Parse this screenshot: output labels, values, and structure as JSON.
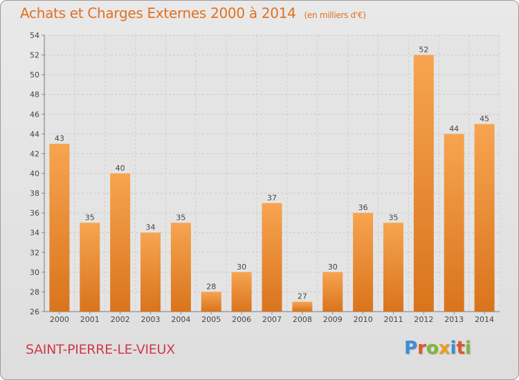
{
  "title": "Achats et Charges Externes 2000 à 2014",
  "unit": "(en milliers d'€)",
  "location": "SAINT-PIERRE-LE-VIEUX",
  "logo": {
    "text": "Proxiti",
    "letters": [
      {
        "ch": "P",
        "color": "#3a8fd6"
      },
      {
        "ch": "r",
        "color": "#e0582a"
      },
      {
        "ch": "o",
        "color": "#7cb83a"
      },
      {
        "ch": "x",
        "color": "#e8a020"
      },
      {
        "ch": "i",
        "color": "#3a8fd6"
      },
      {
        "ch": "t",
        "color": "#e0582a"
      },
      {
        "ch": "i",
        "color": "#7cb83a"
      }
    ]
  },
  "colors": {
    "bar_light": "#f7a450",
    "bar_dark": "#d9741c",
    "title": "#e07020",
    "location": "#cf3a4a"
  },
  "chart_data": {
    "type": "bar",
    "categories": [
      "2000",
      "2001",
      "2002",
      "2003",
      "2004",
      "2005",
      "2006",
      "2007",
      "2008",
      "2009",
      "2010",
      "2011",
      "2012",
      "2013",
      "2014"
    ],
    "values": [
      43,
      35,
      40,
      34,
      35,
      28,
      30,
      37,
      27,
      30,
      36,
      35,
      52,
      44,
      45
    ],
    "ylim": [
      26,
      54
    ],
    "yticks": [
      26,
      28,
      30,
      32,
      34,
      36,
      38,
      40,
      42,
      44,
      46,
      48,
      50,
      52,
      54
    ],
    "grid": true,
    "data_labels": true
  }
}
